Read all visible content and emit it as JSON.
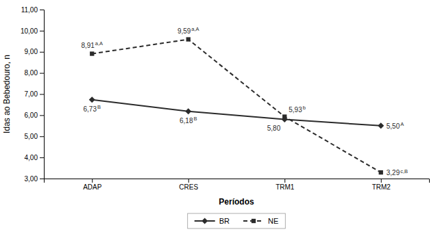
{
  "chart_data": {
    "type": "line",
    "xlabel": "Períodos",
    "ylabel": "Idas ao Bebedouro, n",
    "categories": [
      "ADAP",
      "CRES",
      "TRM1",
      "TRM2"
    ],
    "series": [
      {
        "name": "BR",
        "color": "#2b2b2b",
        "marker": "diamond",
        "line_style": "solid",
        "values": [
          6.73,
          6.18,
          5.8,
          5.5
        ],
        "value_labels": [
          "6,73",
          "6,18",
          "5,80",
          "5,50"
        ],
        "annotations": [
          "B",
          "B",
          null,
          "A"
        ]
      },
      {
        "name": "NE",
        "color": "#2b2b2b",
        "marker": "square",
        "line_style": "dashed",
        "values": [
          8.91,
          9.59,
          5.93,
          3.29
        ],
        "value_labels": [
          "8,91",
          "9,59",
          "5,93",
          "3,29"
        ],
        "annotations": [
          "a,A",
          "a,A",
          "b",
          "c,B"
        ]
      }
    ],
    "ylim": [
      3.0,
      11.0
    ],
    "yticks": [
      {
        "value": 3.0,
        "label": "3,00"
      },
      {
        "value": 4.0,
        "label": "4,00"
      },
      {
        "value": 5.0,
        "label": "5,00"
      },
      {
        "value": 6.0,
        "label": "6,00"
      },
      {
        "value": 7.0,
        "label": "7,00"
      },
      {
        "value": 8.0,
        "label": "8,00"
      },
      {
        "value": 9.0,
        "label": "9,00"
      },
      {
        "value": 10.0,
        "label": "10,00"
      },
      {
        "value": 11.0,
        "label": "11,00"
      }
    ],
    "grid": false,
    "legend": "bottom",
    "data_labels": true
  }
}
